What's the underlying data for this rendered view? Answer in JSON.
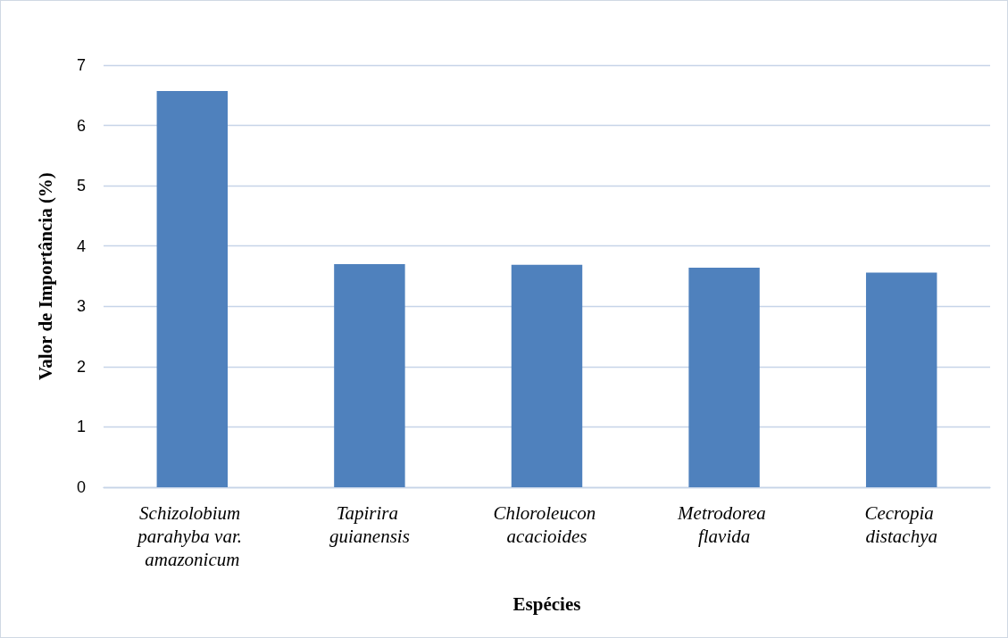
{
  "chart_data": {
    "type": "bar",
    "xlabel": "Espécies",
    "ylabel": "Valor de Importância (%)",
    "categories": [
      "Schizolobium parahyba var. amazonicum",
      "Tapirira guianensis",
      "Chloroleucon acacioides",
      "Metrodorea flavida",
      "Cecropia distachya"
    ],
    "values": [
      6.57,
      3.7,
      3.69,
      3.64,
      3.56
    ],
    "color": "#4f81bd",
    "ylim": [
      0,
      7
    ],
    "yticks": [
      0,
      1,
      2,
      3,
      4,
      5,
      6,
      7
    ],
    "grid": "y"
  }
}
